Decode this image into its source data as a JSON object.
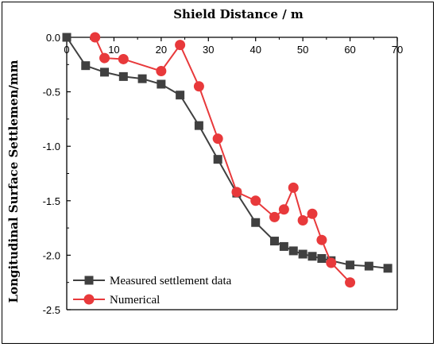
{
  "chart_data": {
    "type": "line",
    "xlabel": "Shield Distance / m",
    "ylabel": "Longitudinal Surface Settlemen/mm",
    "xlim": [
      0,
      70
    ],
    "ylim": [
      -2.5,
      0.0
    ],
    "x_ticks": [
      0,
      10,
      20,
      30,
      40,
      50,
      60,
      70
    ],
    "y_ticks": [
      0.0,
      -0.5,
      -1.0,
      -1.5,
      -2.0,
      -2.5
    ],
    "x_tick_labels": [
      "0",
      "10",
      "20",
      "30",
      "40",
      "50",
      "60",
      "70"
    ],
    "y_tick_labels": [
      "0.0",
      "-0.5",
      "-1.0",
      "-1.5",
      "-2.0",
      "-2.5"
    ],
    "x_axis_position": "top",
    "grid": false,
    "legend_position": "bottom-left",
    "series": [
      {
        "name": "Measured settlement data",
        "marker": "square",
        "color": "#404040",
        "x": [
          0,
          4,
          8,
          12,
          16,
          20,
          24,
          28,
          32,
          36,
          40,
          44,
          46,
          48,
          50,
          52,
          54,
          56,
          60,
          64,
          68
        ],
        "y": [
          0.0,
          -0.26,
          -0.32,
          -0.36,
          -0.38,
          -0.43,
          -0.53,
          -0.81,
          -1.12,
          -1.43,
          -1.7,
          -1.87,
          -1.92,
          -1.96,
          -1.99,
          -2.01,
          -2.03,
          -2.05,
          -2.09,
          -2.1,
          -2.12
        ]
      },
      {
        "name": "Numerical",
        "marker": "circle",
        "color": "#e8393b",
        "x": [
          6,
          8,
          12,
          20,
          24,
          28,
          32,
          36,
          40,
          44,
          46,
          48,
          50,
          52,
          54,
          56,
          60
        ],
        "y": [
          0.0,
          -0.19,
          -0.2,
          -0.31,
          -0.07,
          -0.45,
          -0.93,
          -1.42,
          -1.5,
          -1.65,
          -1.58,
          -1.38,
          -1.68,
          -1.62,
          -1.86,
          -2.07,
          -2.25
        ]
      }
    ]
  }
}
